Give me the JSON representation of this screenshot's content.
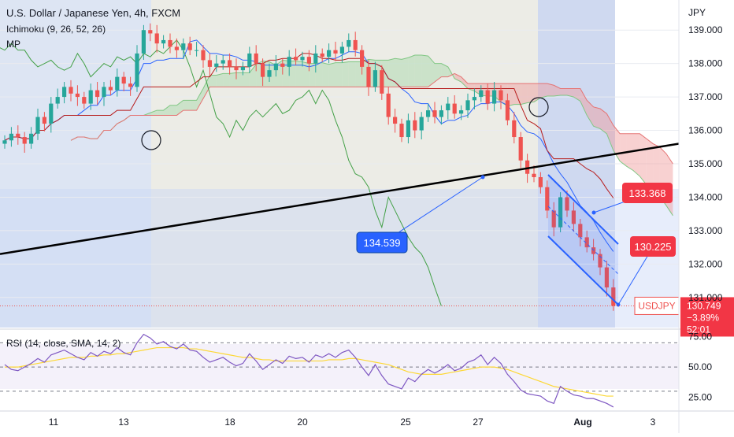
{
  "header": {
    "symbol_title": "U.S. Dollar / Japanese Yen, 4h, FXCM",
    "indicator_ichimoku": "Ichimoku (9, 26, 52, 26)",
    "indicator_mp": "MP",
    "currency": "JPY"
  },
  "colors": {
    "bull": "#26a69a",
    "bear": "#ef5350",
    "tenkan": "#2962ff",
    "kijun": "#b71c1c",
    "lagging": "#43a047",
    "cloud_green": "#a5d6a7",
    "cloud_red": "#ef9a9a",
    "trendline": "#000000",
    "annotation_blue": "#2962ff",
    "annotation_red": "#f23645",
    "rsi_line": "#7e57c2",
    "rsi_ma": "#fdd835"
  },
  "chart_data": {
    "type": "candlestick",
    "symbol": "USDJPY",
    "timeframe": "4h",
    "ylim": [
      130.1,
      139.9
    ],
    "y_ticks": [
      "139.000",
      "138.000",
      "137.000",
      "136.000",
      "135.000",
      "134.000",
      "133.000",
      "132.000",
      "131.000"
    ],
    "x_ticks": [
      "11",
      "13",
      "18",
      "20",
      "25",
      "27",
      "Aug",
      "3"
    ],
    "price_closes": [
      135.7,
      135.9,
      135.8,
      135.6,
      135.9,
      136.4,
      136.2,
      136.8,
      137.0,
      137.3,
      137.1,
      137.0,
      136.8,
      137.2,
      137.0,
      137.3,
      137.2,
      137.6,
      137.4,
      137.3,
      138.3,
      139.0,
      138.9,
      138.6,
      138.7,
      138.5,
      138.4,
      138.6,
      138.4,
      138.4,
      138.1,
      137.9,
      138.0,
      138.1,
      137.9,
      137.8,
      137.9,
      138.3,
      138.0,
      137.6,
      137.8,
      138.0,
      137.9,
      138.2,
      138.1,
      138.2,
      138.0,
      138.3,
      138.2,
      138.4,
      138.3,
      138.5,
      138.7,
      138.4,
      137.9,
      137.3,
      137.8,
      137.1,
      136.4,
      136.2,
      135.8,
      136.3,
      136.0,
      136.4,
      136.6,
      136.4,
      136.6,
      136.8,
      136.5,
      136.6,
      136.9,
      137.0,
      137.2,
      136.8,
      137.2,
      136.9,
      136.3,
      135.8,
      135.1,
      134.7,
      134.6,
      134.3,
      133.6,
      133.1,
      134.0,
      133.6,
      133.2,
      132.8,
      132.5,
      132.3,
      131.9,
      131.3,
      130.75
    ],
    "candles_note": "Values read approximately from chart",
    "trendline": {
      "label": "",
      "start": [
        0,
        132.3
      ],
      "end": [
        93,
        135.6
      ]
    },
    "annotations": [
      {
        "label": "134.539",
        "value": 134.539,
        "color": "blue"
      },
      {
        "label": "133.368",
        "value": 133.368,
        "color": "red"
      },
      {
        "label": "130.225",
        "value": 130.225,
        "color": "red"
      }
    ],
    "current_price": {
      "symbol": "USDJPY",
      "price": "130.749",
      "change": "−3.89%",
      "countdown": "52:01",
      "value": 130.749
    },
    "rsi": {
      "label": "RSI (14, close, SMA, 14, 2)",
      "ylim": [
        15,
        80
      ],
      "levels": [
        70,
        50,
        30
      ],
      "y_ticks": [
        "75.00",
        "50.00",
        "25.00"
      ],
      "values": [
        52,
        48,
        47,
        50,
        53,
        57,
        54,
        60,
        62,
        64,
        61,
        58,
        56,
        62,
        59,
        63,
        61,
        66,
        62,
        60,
        70,
        77,
        74,
        69,
        71,
        67,
        65,
        69,
        64,
        63,
        58,
        54,
        56,
        58,
        54,
        51,
        53,
        61,
        55,
        48,
        52,
        56,
        53,
        59,
        57,
        58,
        54,
        60,
        58,
        61,
        58,
        62,
        64,
        58,
        50,
        43,
        52,
        43,
        36,
        34,
        32,
        41,
        38,
        44,
        48,
        45,
        48,
        52,
        47,
        49,
        54,
        56,
        60,
        52,
        58,
        53,
        44,
        38,
        31,
        28,
        27,
        26,
        22,
        20,
        34,
        30,
        27,
        26,
        24,
        24,
        22,
        20,
        17
      ],
      "ma_values": [
        50,
        50,
        50,
        51,
        52,
        53,
        54,
        55,
        56,
        57,
        58,
        58,
        58,
        59,
        59,
        60,
        60,
        61,
        61,
        62,
        63,
        64,
        65,
        66,
        66,
        66,
        66,
        66,
        65,
        65,
        64,
        63,
        62,
        61,
        60,
        59,
        58,
        58,
        57,
        56,
        56,
        55,
        55,
        55,
        55,
        55,
        55,
        55,
        55,
        56,
        56,
        56,
        57,
        57,
        56,
        55,
        54,
        53,
        52,
        50,
        48,
        46,
        45,
        44,
        44,
        44,
        44,
        45,
        46,
        47,
        48,
        49,
        50,
        50,
        50,
        49,
        48,
        46,
        44,
        42,
        40,
        38,
        36,
        34,
        33,
        32,
        31,
        30,
        29,
        28,
        27,
        26,
        26
      ]
    }
  }
}
